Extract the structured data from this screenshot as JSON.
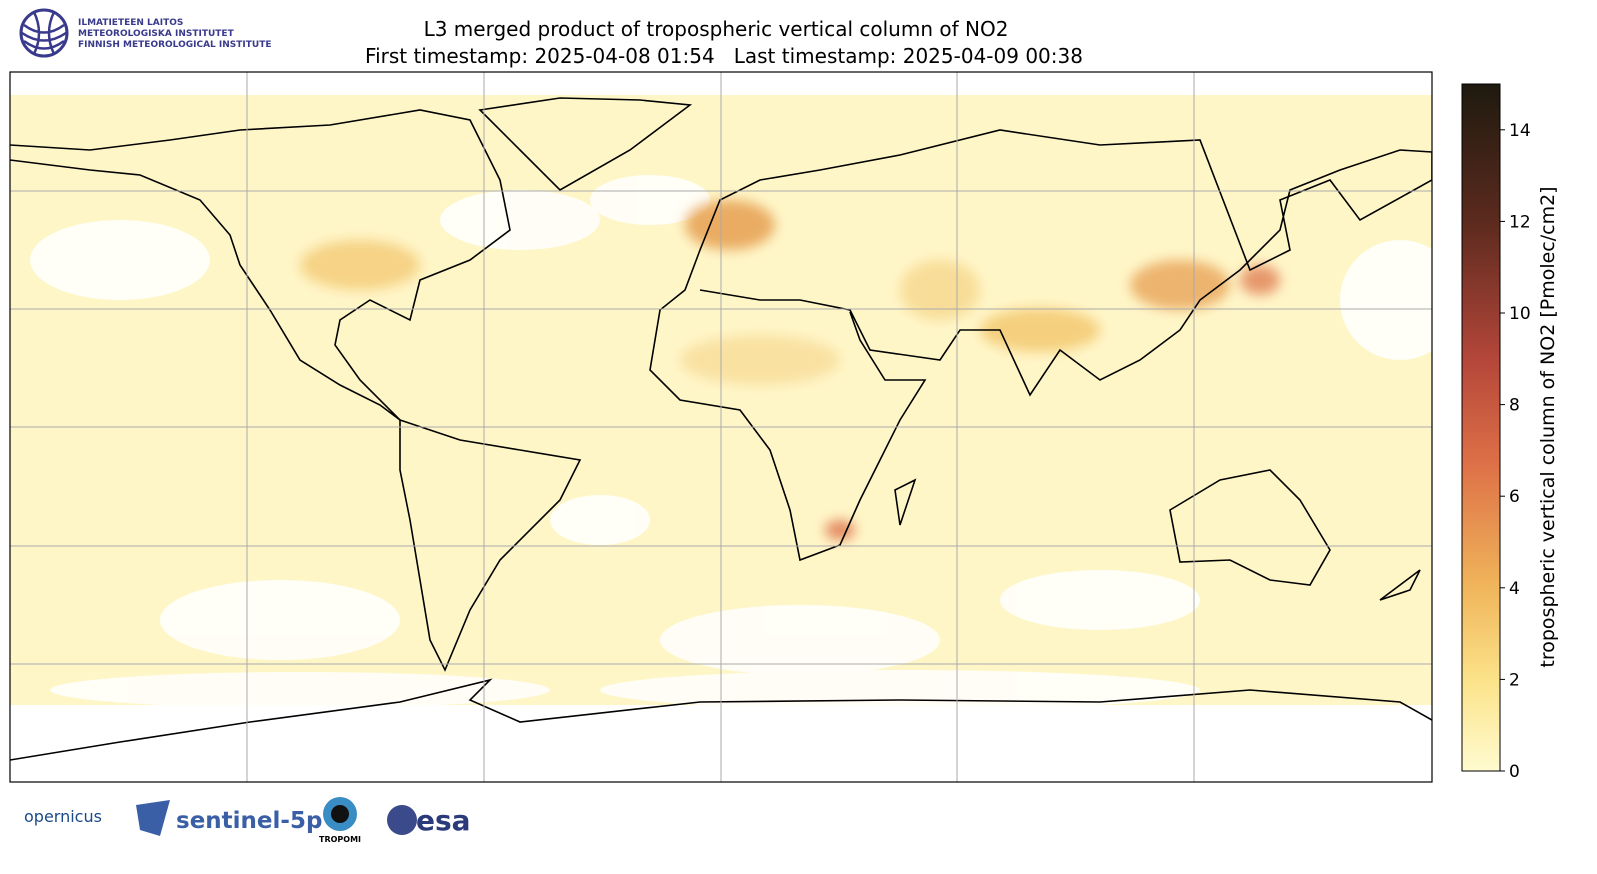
{
  "header": {
    "logo_lines": [
      "ILMATIETEEN LAITOS",
      "METEOROLOGISKA INSTITUTET",
      "FINNISH METEOROLOGICAL INSTITUTE"
    ],
    "title": "L3 merged product of tropospheric vertical column of NO2",
    "subtitle": "First timestamp: 2025-04-08 01:54   Last timestamp: 2025-04-09 00:38"
  },
  "colorbar": {
    "label": "tropospheric vertical column of NO2 [Pmolec/cm2]",
    "lim": [
      0,
      15
    ],
    "ticks": [
      0,
      2,
      4,
      6,
      8,
      10,
      12,
      14
    ]
  },
  "footer": {
    "logos": [
      "opernicus",
      "sentinel-5p",
      "TROPOMI",
      "esa"
    ]
  }
}
